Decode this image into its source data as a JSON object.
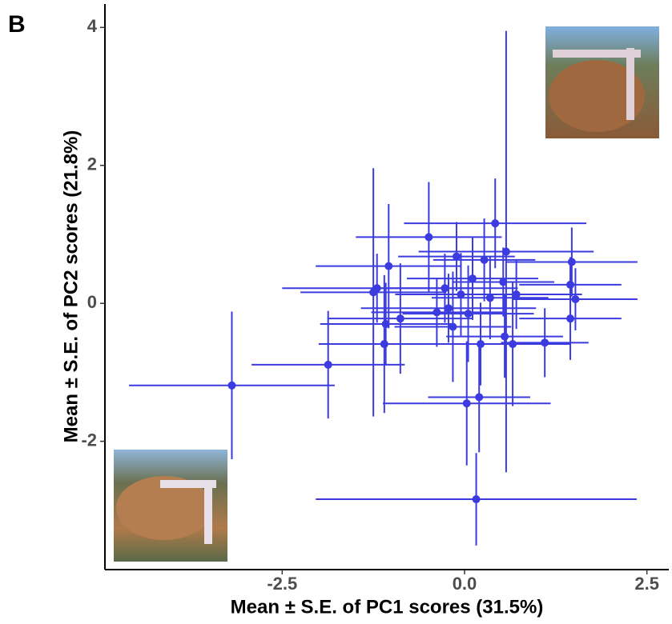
{
  "chart_data": {
    "type": "scatter",
    "panel_label": "B",
    "x_label": "Mean ± S.E. of PC1 scores (31.5%)",
    "y_label": "Mean ± S.E. of PC2 scores (21.8%)",
    "color": "#3b3be0",
    "xlim": [
      -4.93,
      2.8
    ],
    "ylim": [
      -3.86,
      4.34
    ],
    "xticks": [
      -2.5,
      {
        "value": 0,
        "label": "0.0"
      },
      2.5
    ],
    "yticks": [
      -2,
      0,
      2,
      4
    ],
    "x": [
      -3.19,
      -1.87,
      0.16,
      0.03,
      0.2,
      -0.49,
      0.42,
      0.57,
      1.47,
      1.52,
      1.45,
      1.45,
      -1.25,
      -1.1,
      -1.04,
      -0.88,
      -1.08,
      0.11,
      -0.11,
      0.27,
      -0.22,
      -0.05,
      -0.16,
      0.71,
      0.53,
      0.66,
      0.55,
      0.22,
      -0.38,
      0.35,
      0.05,
      -0.27,
      1.1,
      -1.2
    ],
    "y": [
      -1.19,
      -0.89,
      -2.84,
      -1.45,
      -1.36,
      0.96,
      1.16,
      0.75,
      0.6,
      0.06,
      0.27,
      -0.22,
      0.16,
      -0.59,
      0.54,
      -0.22,
      -0.3,
      0.36,
      0.68,
      0.63,
      -0.07,
      0.13,
      -0.34,
      0.13,
      0.31,
      -0.59,
      -0.48,
      -0.59,
      -0.13,
      0.08,
      -0.15,
      0.22,
      -0.57,
      0.22
    ],
    "xerr": [
      1.41,
      1.05,
      2.2,
      1.15,
      0.7,
      1.0,
      1.25,
      1.2,
      0.9,
      0.85,
      0.7,
      0.7,
      1.0,
      0.9,
      1.0,
      1.0,
      0.9,
      0.9,
      0.8,
      0.7,
      1.2,
      0.9,
      0.8,
      0.9,
      0.7,
      0.8,
      0.8,
      0.6,
      0.9,
      0.8,
      0.9,
      1.0,
      0.6,
      1.3
    ],
    "yerr": [
      1.07,
      0.78,
      0.67,
      0.9,
      0.8,
      0.8,
      0.65,
      3.2,
      0.5,
      0.45,
      0.4,
      0.6,
      1.8,
      1.0,
      0.9,
      0.8,
      0.6,
      0.6,
      0.5,
      0.6,
      0.5,
      0.6,
      0.8,
      0.5,
      0.5,
      0.9,
      0.6,
      0.6,
      0.5,
      0.6,
      0.7,
      0.5,
      0.5,
      0.5
    ]
  }
}
